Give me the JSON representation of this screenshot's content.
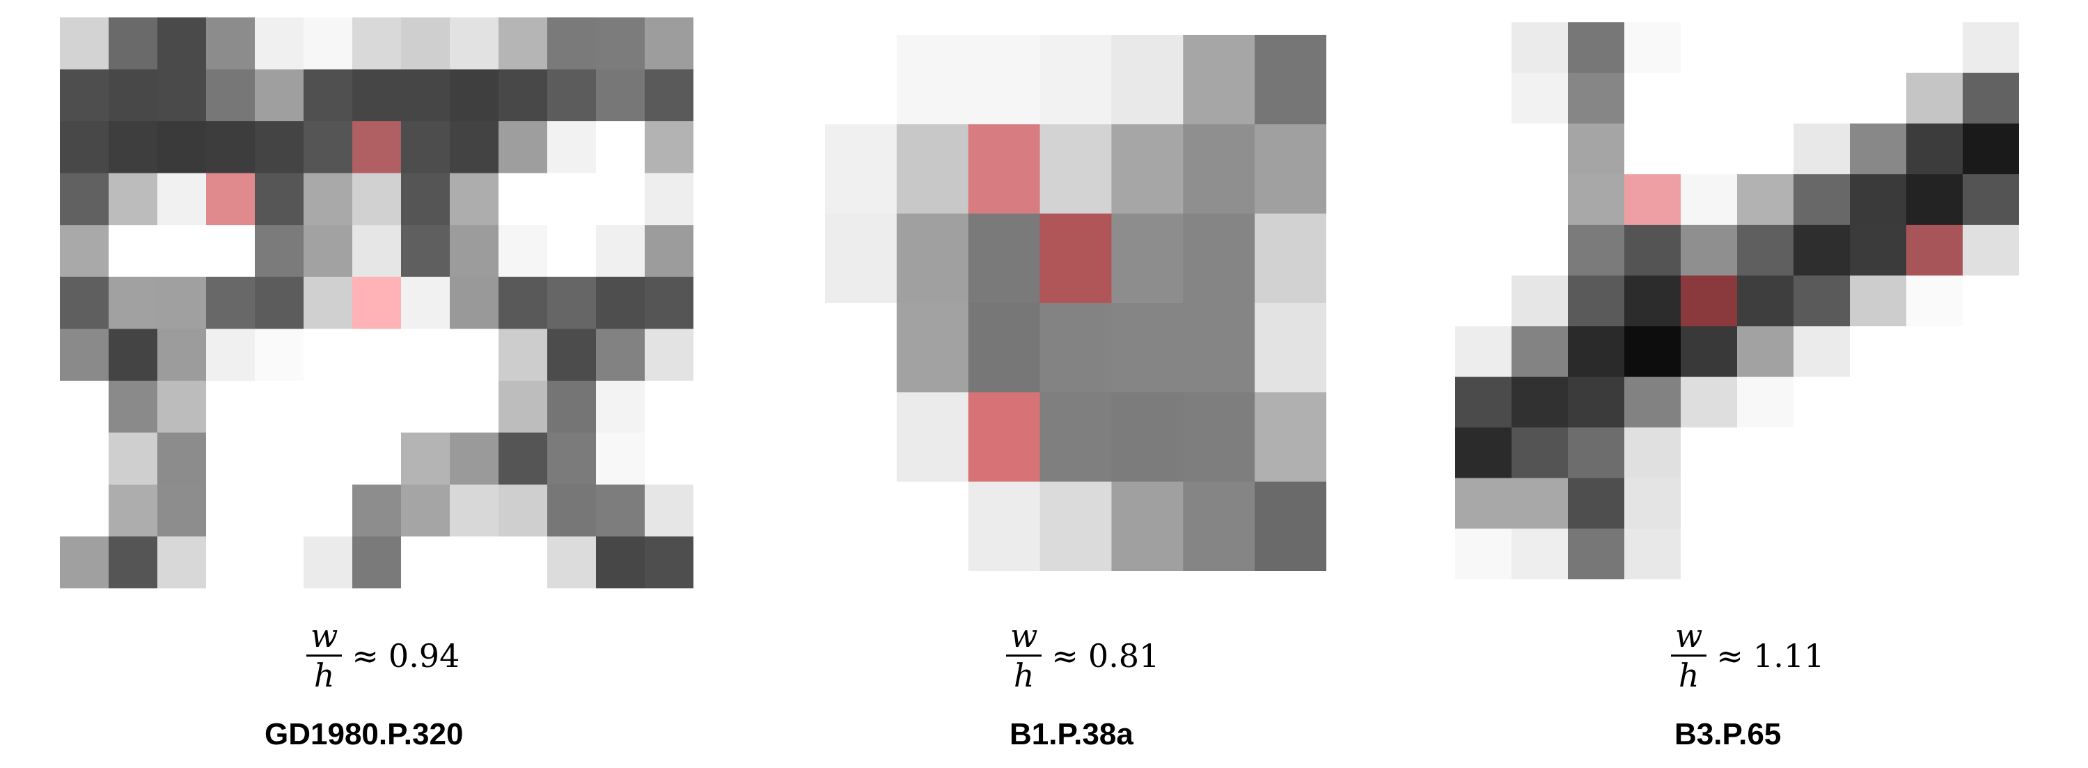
{
  "figure": {
    "panels": [
      {
        "id": "GD1980.P.320",
        "ratio_num": "w",
        "ratio_den": "h",
        "ratio_rel": "≈",
        "ratio_value": "0.94",
        "label": "GD1980.P.320",
        "grid": [
          [
            "#d3d3d3",
            "#6a6a6a",
            "#4a4a4a",
            "#8c8c8c",
            "#f0f0f0",
            "#f7f7f7",
            "#d9d9d9",
            "#cfcfcf",
            "#e2e2e2",
            "#b5b5b5",
            "#7a7a7a",
            "#7c7c7c",
            "#9d9d9d"
          ],
          [
            "#4e4e4e",
            "#484848",
            "#4a4a4a",
            "#777777",
            "#9f9f9f",
            "#505050",
            "#464646",
            "#464646",
            "#3f3f3f",
            "#484848",
            "#5c5c5c",
            "#777777",
            "#5a5a5a"
          ],
          [
            "#484848",
            "#3e3e3e",
            "#3a3a3a",
            "#3d3d3d",
            "#444444",
            "#555555",
            "#b05f62",
            "#4d4d4d",
            "#434343",
            "#9e9e9e",
            "#f2f2f2",
            "#ffffff",
            "#b3b3b3"
          ],
          [
            "#616161",
            "#bcbcbc",
            "#f1f1f1",
            "#e08a8e",
            "#565656",
            "#a9a9a9",
            "#d1d1d1",
            "#555555",
            "#adadad",
            "#ffffff",
            "#ffffff",
            "#ffffff",
            "#eeeeee"
          ],
          [
            "#a9a9a9",
            "#ffffff",
            "#ffffff",
            "#ffffff",
            "#7b7b7b",
            "#a2a2a2",
            "#e6e6e6",
            "#5f5f5f",
            "#9c9c9c",
            "#f6f6f6",
            "#ffffff",
            "#f0f0f0",
            "#9c9c9c"
          ],
          [
            "#5f5f5f",
            "#a1a1a1",
            "#a0a0a0",
            "#686868",
            "#5c5c5c",
            "#d0d0d0",
            "#ffb3b6",
            "#f1f1f1",
            "#999999",
            "#595959",
            "#666666",
            "#4e4e4e",
            "#555555"
          ],
          [
            "#8a8a8a",
            "#444444",
            "#9c9c9c",
            "#f0f0f0",
            "#fafafa",
            "#ffffff",
            "#ffffff",
            "#ffffff",
            "#ffffff",
            "#cdcdcd",
            "#4c4c4c",
            "#828282",
            "#e3e3e3"
          ],
          [
            "#ffffff",
            "#8a8a8a",
            "#bcbcbc",
            "#ffffff",
            "#ffffff",
            "#ffffff",
            "#ffffff",
            "#ffffff",
            "#ffffff",
            "#bdbdbd",
            "#757575",
            "#f3f3f3",
            "#ffffff"
          ],
          [
            "#ffffff",
            "#cfcfcf",
            "#8c8c8c",
            "#ffffff",
            "#ffffff",
            "#ffffff",
            "#ffffff",
            "#b4b4b4",
            "#9a9a9a",
            "#555555",
            "#7b7b7b",
            "#f8f8f8",
            "#ffffff"
          ],
          [
            "#ffffff",
            "#adadad",
            "#8d8d8d",
            "#ffffff",
            "#ffffff",
            "#ffffff",
            "#8d8d8d",
            "#a5a5a5",
            "#d8d8d8",
            "#cfcfcf",
            "#777777",
            "#7d7d7d",
            "#e6e6e6"
          ],
          [
            "#a0a0a0",
            "#555555",
            "#d8d8d8",
            "#ffffff",
            "#ffffff",
            "#ebebeb",
            "#7a7a7a",
            "#ffffff",
            "#ffffff",
            "#ffffff",
            "#dcdcdc",
            "#474747",
            "#4e4e4e"
          ]
        ]
      },
      {
        "id": "B1.P.38a",
        "ratio_num": "w",
        "ratio_den": "h",
        "ratio_rel": "≈",
        "ratio_value": "0.81",
        "label": "B1.P.38a",
        "grid": [
          [
            "#ffffff",
            "#f6f6f6",
            "#f6f6f6",
            "#f2f2f2",
            "#e9e9e9",
            "#a6a6a6",
            "#767676"
          ],
          [
            "#f0f0f0",
            "#c8c8c8",
            "#d77c80",
            "#d3d3d3",
            "#a6a6a6",
            "#8f8f8f",
            "#a0a0a0"
          ],
          [
            "#ededed",
            "#a0a0a0",
            "#7a7a7a",
            "#b05558",
            "#8d8d8d",
            "#858585",
            "#d2d2d2"
          ],
          [
            "#ffffff",
            "#a2a2a2",
            "#777777",
            "#838383",
            "#858585",
            "#858585",
            "#e3e3e3"
          ],
          [
            "#ffffff",
            "#ebebeb",
            "#d77276",
            "#7f7f7f",
            "#7c7c7c",
            "#7e7e7e",
            "#b0b0b0"
          ],
          [
            "#ffffff",
            "#ffffff",
            "#ececec",
            "#dbdbdb",
            "#a0a0a0",
            "#858585",
            "#6a6a6a"
          ]
        ]
      },
      {
        "id": "B3.P.65",
        "ratio_num": "w",
        "ratio_den": "h",
        "ratio_rel": "≈",
        "ratio_value": "1.11",
        "label": "B3.P.65",
        "grid": [
          [
            "#ffffff",
            "#ebebeb",
            "#777777",
            "#f9f9f9",
            "#ffffff",
            "#ffffff",
            "#ffffff",
            "#ffffff",
            "#ffffff",
            "#ececec"
          ],
          [
            "#ffffff",
            "#f2f2f2",
            "#868686",
            "#ffffff",
            "#ffffff",
            "#ffffff",
            "#ffffff",
            "#ffffff",
            "#c5c5c5",
            "#626262"
          ],
          [
            "#ffffff",
            "#ffffff",
            "#a5a5a5",
            "#ffffff",
            "#ffffff",
            "#ffffff",
            "#e8e8e8",
            "#888888",
            "#3c3c3c",
            "#1a1a1a"
          ],
          [
            "#ffffff",
            "#ffffff",
            "#a8a8a8",
            "#ee9fa3",
            "#f6f6f6",
            "#b2b2b2",
            "#686868",
            "#3a3a3a",
            "#232323",
            "#545454"
          ],
          [
            "#ffffff",
            "#ffffff",
            "#7b7b7b",
            "#545454",
            "#8f8f8f",
            "#5f5f5f",
            "#2e2e2e",
            "#3b3b3b",
            "#a75559",
            "#e0e0e0"
          ],
          [
            "#ffffff",
            "#e6e6e6",
            "#5a5a5a",
            "#2c2c2c",
            "#8a3a3d",
            "#3e3e3e",
            "#5a5a5a",
            "#cdcdcd",
            "#fafafa",
            "#ffffff"
          ],
          [
            "#ededed",
            "#838383",
            "#2a2a2a",
            "#0d0d0d",
            "#393939",
            "#a2a2a2",
            "#ebebeb",
            "#ffffff",
            "#ffffff",
            "#ffffff"
          ],
          [
            "#4b4b4b",
            "#313131",
            "#3b3b3b",
            "#828282",
            "#dedede",
            "#f8f8f8",
            "#ffffff",
            "#ffffff",
            "#ffffff",
            "#ffffff"
          ],
          [
            "#2b2b2b",
            "#545454",
            "#6d6d6d",
            "#e0e0e0",
            "#ffffff",
            "#ffffff",
            "#ffffff",
            "#ffffff",
            "#ffffff",
            "#ffffff"
          ],
          [
            "#a8a8a8",
            "#a8a8a8",
            "#4e4e4e",
            "#e4e4e4",
            "#ffffff",
            "#ffffff",
            "#ffffff",
            "#ffffff",
            "#ffffff",
            "#ffffff"
          ],
          [
            "#f8f8f8",
            "#eeeeee",
            "#777777",
            "#e8e8e8",
            "#ffffff",
            "#ffffff",
            "#ffffff",
            "#ffffff",
            "#ffffff",
            "#ffffff"
          ]
        ]
      }
    ]
  }
}
